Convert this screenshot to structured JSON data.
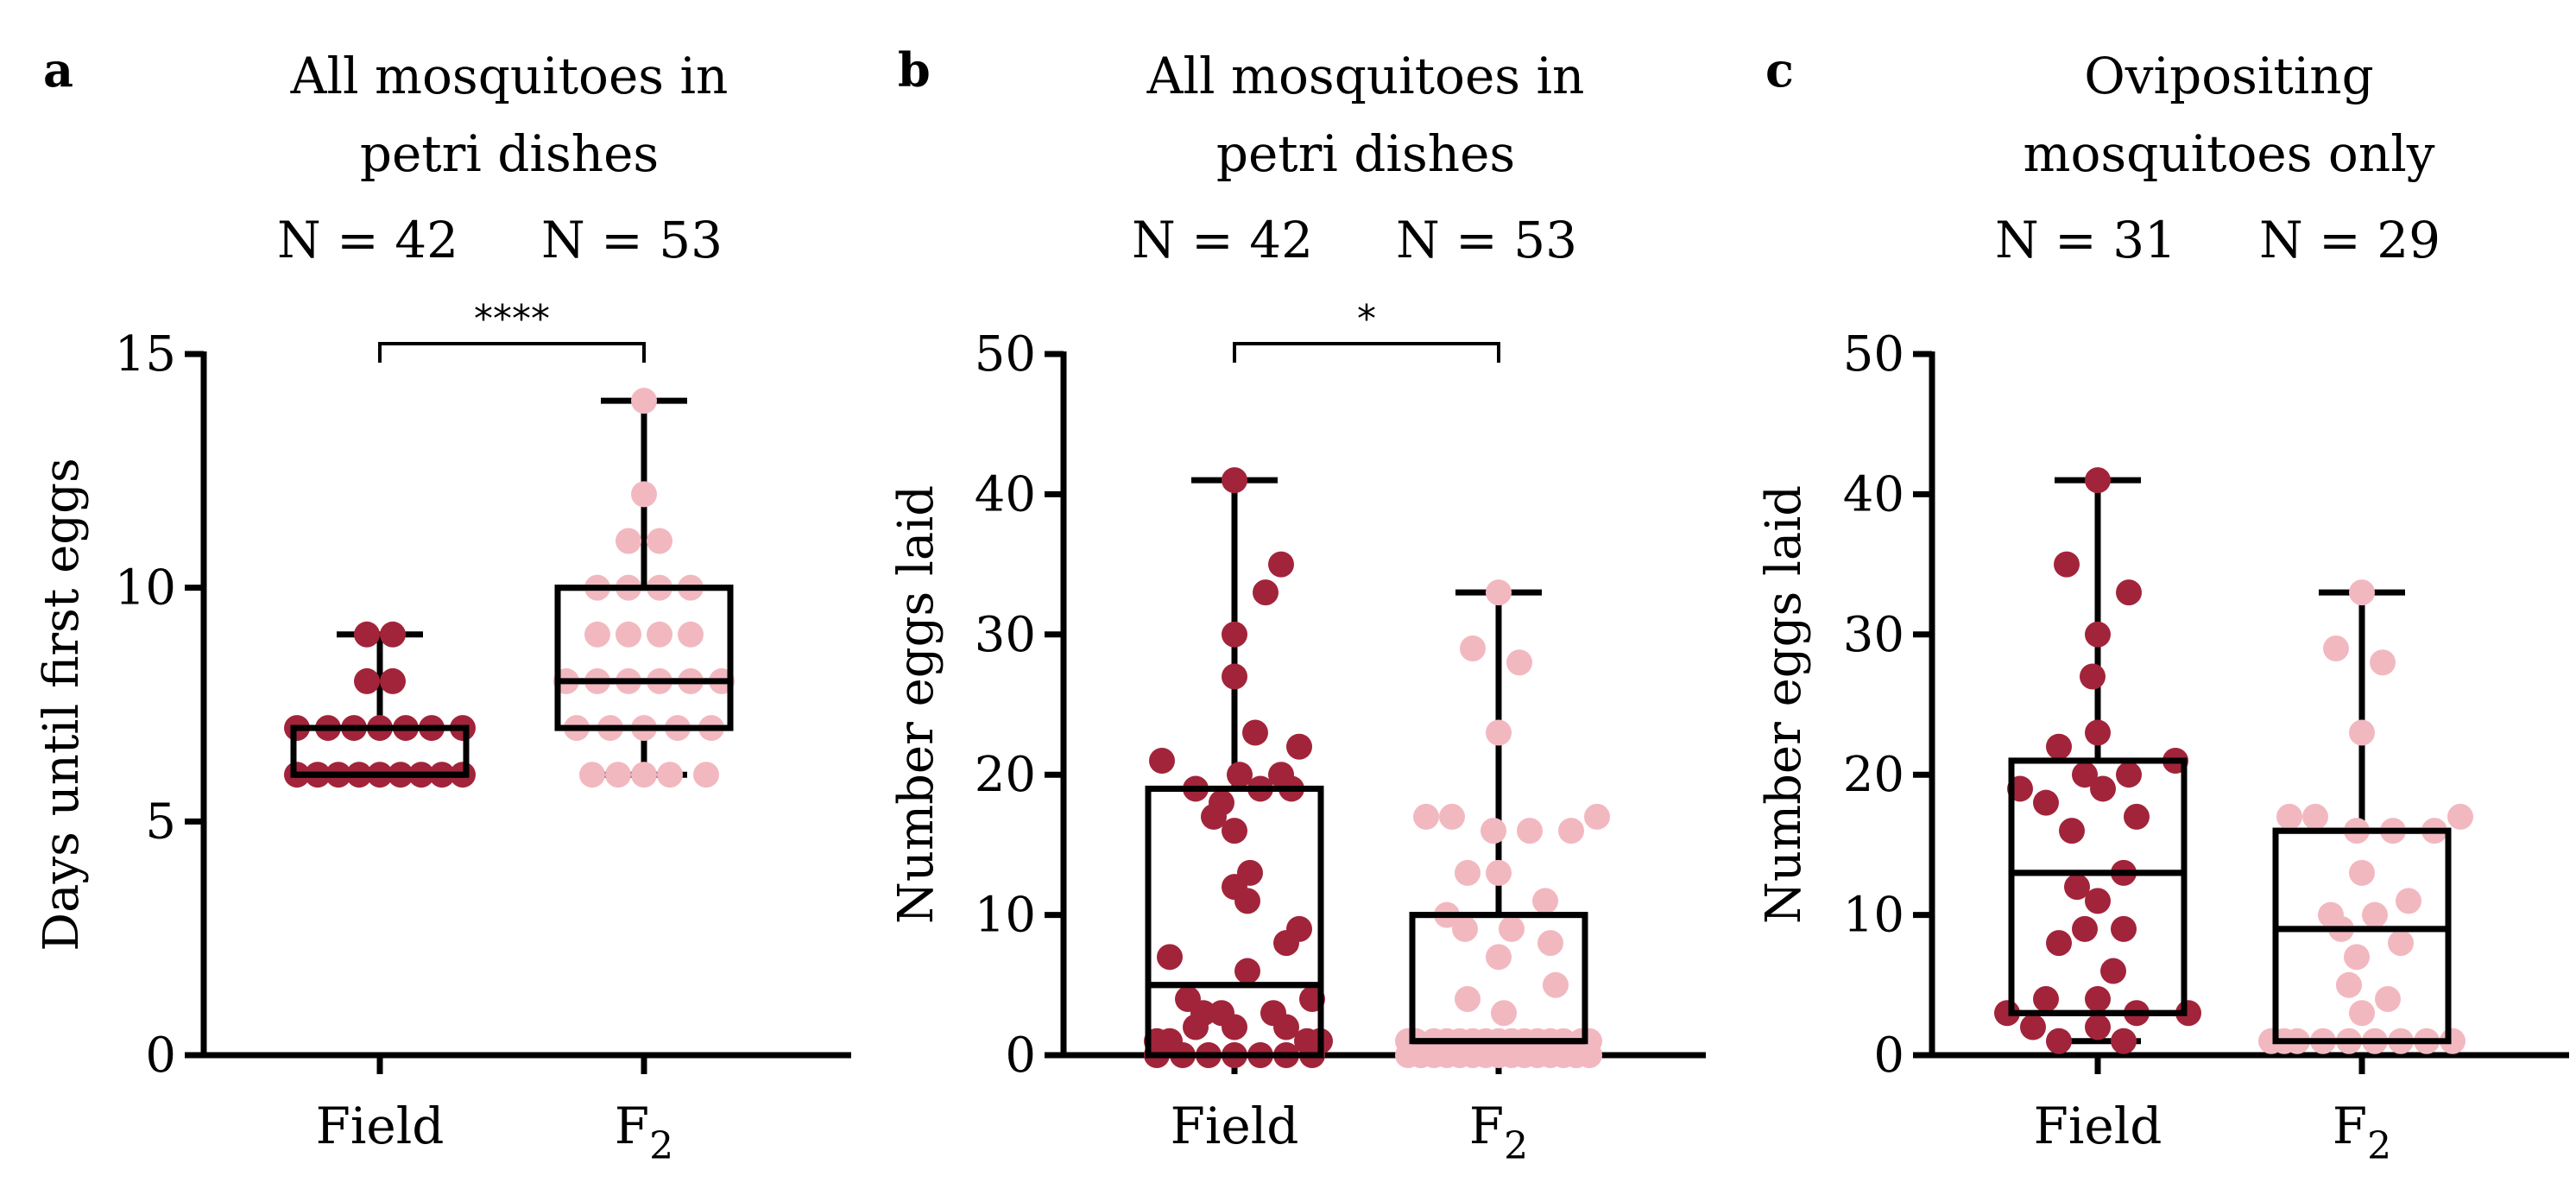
{
  "colors": {
    "field": "#a2243a",
    "f2": "#f2b8c0",
    "axis": "#000000"
  },
  "chart_data": [
    {
      "panel": "a",
      "type": "scatter",
      "title": [
        "All mosquitoes in",
        "petri dishes"
      ],
      "n_labels": [
        "N = 42",
        "N = 53"
      ],
      "ylabel": "Days until first eggs",
      "ylim": [
        0,
        15
      ],
      "yticks": [
        0,
        5,
        10,
        15
      ],
      "categories": [
        "Field",
        "F2"
      ],
      "significance": "****",
      "box": [
        {
          "min": 6,
          "q1": 6,
          "median": 6,
          "q3": 7,
          "max": 9
        },
        {
          "min": 6,
          "q1": 7,
          "median": 8,
          "q3": 10,
          "max": 14
        }
      ],
      "series": [
        {
          "name": "Field",
          "points": [
            [
              -0.32,
              6
            ],
            [
              -0.24,
              6
            ],
            [
              -0.16,
              6
            ],
            [
              -0.08,
              6
            ],
            [
              0,
              6
            ],
            [
              0.08,
              6
            ],
            [
              0.16,
              6
            ],
            [
              0.24,
              6
            ],
            [
              0.32,
              6
            ],
            [
              -0.32,
              7
            ],
            [
              -0.2,
              7
            ],
            [
              -0.1,
              7
            ],
            [
              0,
              7
            ],
            [
              0.1,
              7
            ],
            [
              0.2,
              7
            ],
            [
              0.32,
              7
            ],
            [
              -0.05,
              8
            ],
            [
              0.05,
              8
            ],
            [
              -0.05,
              9
            ],
            [
              0.05,
              9
            ]
          ]
        },
        {
          "name": "F2",
          "points": [
            [
              -0.2,
              6
            ],
            [
              -0.1,
              6
            ],
            [
              0,
              6
            ],
            [
              0.1,
              6
            ],
            [
              0.24,
              6
            ],
            [
              -0.26,
              7
            ],
            [
              -0.13,
              7
            ],
            [
              0,
              7
            ],
            [
              0.13,
              7
            ],
            [
              0.26,
              7
            ],
            [
              -0.3,
              8
            ],
            [
              -0.18,
              8
            ],
            [
              -0.06,
              8
            ],
            [
              0.06,
              8
            ],
            [
              0.18,
              8
            ],
            [
              0.3,
              8
            ],
            [
              -0.18,
              9
            ],
            [
              -0.06,
              9
            ],
            [
              0.06,
              9
            ],
            [
              0.18,
              9
            ],
            [
              -0.18,
              10
            ],
            [
              -0.06,
              10
            ],
            [
              0.06,
              10
            ],
            [
              0.18,
              10
            ],
            [
              -0.06,
              11
            ],
            [
              0.06,
              11
            ],
            [
              0,
              12
            ],
            [
              0,
              14
            ]
          ]
        }
      ]
    },
    {
      "panel": "b",
      "type": "scatter",
      "title": [
        "All mosquitoes in",
        "petri dishes"
      ],
      "n_labels": [
        "N = 42",
        "N = 53"
      ],
      "ylabel": "Number eggs laid",
      "ylim": [
        0,
        50
      ],
      "yticks": [
        0,
        10,
        20,
        30,
        40,
        50
      ],
      "categories": [
        "Field",
        "F2"
      ],
      "significance": "*",
      "box": [
        {
          "min": 0,
          "q1": 0,
          "median": 5,
          "q3": 19,
          "max": 41
        },
        {
          "min": 0,
          "q1": 1,
          "median": 1,
          "q3": 10,
          "max": 33
        }
      ],
      "series": [
        {
          "name": "Field",
          "points": [
            [
              0.0,
              41
            ],
            [
              0.18,
              35
            ],
            [
              0.12,
              33
            ],
            [
              0.0,
              30
            ],
            [
              0.0,
              27
            ],
            [
              0.25,
              22
            ],
            [
              0.08,
              23
            ],
            [
              0.02,
              20
            ],
            [
              0.18,
              20
            ],
            [
              -0.28,
              21
            ],
            [
              -0.15,
              19
            ],
            [
              -0.05,
              18
            ],
            [
              0.1,
              19
            ],
            [
              0.22,
              19
            ],
            [
              -0.08,
              17
            ],
            [
              0.0,
              16
            ],
            [
              0.06,
              13
            ],
            [
              0.0,
              12
            ],
            [
              0.05,
              11
            ],
            [
              0.25,
              9
            ],
            [
              0.2,
              8
            ],
            [
              -0.25,
              7
            ],
            [
              -0.18,
              4
            ],
            [
              0.3,
              4
            ],
            [
              -0.05,
              3
            ],
            [
              0.15,
              3
            ],
            [
              0.0,
              2
            ],
            [
              0.2,
              2
            ],
            [
              -0.15,
              2
            ],
            [
              -0.3,
              1
            ],
            [
              0.33,
              1
            ],
            [
              -0.2,
              0
            ],
            [
              -0.1,
              0
            ],
            [
              0.0,
              0
            ],
            [
              0.1,
              0
            ],
            [
              0.2,
              0
            ],
            [
              0.3,
              0
            ],
            [
              -0.3,
              0
            ],
            [
              -0.25,
              1
            ],
            [
              0.28,
              1
            ],
            [
              0.05,
              6
            ],
            [
              -0.12,
              3
            ]
          ]
        },
        {
          "name": "F2",
          "points": [
            [
              0.0,
              33
            ],
            [
              -0.1,
              29
            ],
            [
              0.08,
              28
            ],
            [
              0.0,
              23
            ],
            [
              -0.28,
              17
            ],
            [
              -0.18,
              17
            ],
            [
              -0.02,
              16
            ],
            [
              0.12,
              16
            ],
            [
              0.28,
              16
            ],
            [
              0.38,
              17
            ],
            [
              -0.12,
              13
            ],
            [
              0.0,
              13
            ],
            [
              -0.2,
              10
            ],
            [
              0.18,
              11
            ],
            [
              -0.13,
              9
            ],
            [
              0.05,
              9
            ],
            [
              0.2,
              8
            ],
            [
              0.0,
              7
            ],
            [
              -0.12,
              4
            ],
            [
              0.22,
              5
            ],
            [
              0.02,
              3
            ],
            [
              -0.35,
              1
            ],
            [
              -0.25,
              1
            ],
            [
              -0.15,
              1
            ],
            [
              -0.05,
              1
            ],
            [
              0.05,
              1
            ],
            [
              0.15,
              1
            ],
            [
              0.25,
              1
            ],
            [
              0.35,
              1
            ],
            [
              -0.35,
              0
            ],
            [
              -0.25,
              0
            ],
            [
              -0.15,
              0
            ],
            [
              -0.05,
              0
            ],
            [
              0.05,
              0
            ],
            [
              0.15,
              0
            ],
            [
              0.25,
              0
            ],
            [
              0.35,
              0
            ],
            [
              -0.3,
              0
            ],
            [
              0.3,
              0
            ],
            [
              0.0,
              0
            ],
            [
              0.1,
              0
            ],
            [
              -0.1,
              0
            ],
            [
              0.2,
              0
            ],
            [
              -0.2,
              0
            ],
            [
              0.32,
              1
            ],
            [
              -0.32,
              1
            ],
            [
              0.1,
              1
            ],
            [
              -0.1,
              1
            ],
            [
              0.0,
              1
            ],
            [
              0.2,
              1
            ],
            [
              -0.2,
              1
            ],
            [
              0.3,
              0
            ],
            [
              -0.3,
              0
            ]
          ]
        }
      ]
    },
    {
      "panel": "c",
      "type": "scatter",
      "title": [
        "Ovipositing",
        "mosquitoes only"
      ],
      "n_labels": [
        "N = 31",
        "N = 29"
      ],
      "ylabel": "Number eggs laid",
      "ylim": [
        0,
        50
      ],
      "yticks": [
        0,
        10,
        20,
        30,
        40,
        50
      ],
      "categories": [
        "Field",
        "F2"
      ],
      "significance": "",
      "box": [
        {
          "min": 1,
          "q1": 3,
          "median": 13,
          "q3": 21,
          "max": 41
        },
        {
          "min": 1,
          "q1": 1,
          "median": 9,
          "q3": 16,
          "max": 33
        }
      ],
      "series": [
        {
          "name": "Field",
          "points": [
            [
              0.0,
              41
            ],
            [
              -0.12,
              35
            ],
            [
              0.12,
              33
            ],
            [
              0.0,
              30
            ],
            [
              -0.02,
              27
            ],
            [
              0.0,
              23
            ],
            [
              -0.15,
              22
            ],
            [
              0.12,
              20
            ],
            [
              0.3,
              21
            ],
            [
              -0.05,
              20
            ],
            [
              -0.3,
              19
            ],
            [
              0.02,
              19
            ],
            [
              -0.2,
              18
            ],
            [
              0.15,
              17
            ],
            [
              -0.1,
              16
            ],
            [
              0.1,
              13
            ],
            [
              -0.08,
              12
            ],
            [
              0.0,
              11
            ],
            [
              -0.05,
              9
            ],
            [
              0.1,
              9
            ],
            [
              -0.15,
              8
            ],
            [
              0.06,
              6
            ],
            [
              -0.2,
              4
            ],
            [
              0.0,
              4
            ],
            [
              0.15,
              3
            ],
            [
              -0.35,
              3
            ],
            [
              0.35,
              3
            ],
            [
              -0.25,
              2
            ],
            [
              0.0,
              2
            ],
            [
              -0.15,
              1
            ],
            [
              0.1,
              1
            ]
          ]
        },
        {
          "name": "F2",
          "points": [
            [
              0.0,
              33
            ],
            [
              -0.1,
              29
            ],
            [
              0.08,
              28
            ],
            [
              0.0,
              23
            ],
            [
              -0.28,
              17
            ],
            [
              -0.18,
              17
            ],
            [
              -0.02,
              16
            ],
            [
              0.12,
              16
            ],
            [
              0.28,
              16
            ],
            [
              0.38,
              17
            ],
            [
              0.0,
              13
            ],
            [
              -0.12,
              10
            ],
            [
              0.05,
              10
            ],
            [
              0.18,
              11
            ],
            [
              -0.08,
              9
            ],
            [
              0.15,
              8
            ],
            [
              -0.02,
              7
            ],
            [
              -0.05,
              5
            ],
            [
              0.1,
              4
            ],
            [
              0.0,
              3
            ],
            [
              -0.35,
              1
            ],
            [
              -0.25,
              1
            ],
            [
              -0.15,
              1
            ],
            [
              -0.05,
              1
            ],
            [
              0.05,
              1
            ],
            [
              0.15,
              1
            ],
            [
              0.25,
              1
            ],
            [
              0.35,
              1
            ],
            [
              -0.3,
              1
            ]
          ]
        }
      ]
    }
  ]
}
